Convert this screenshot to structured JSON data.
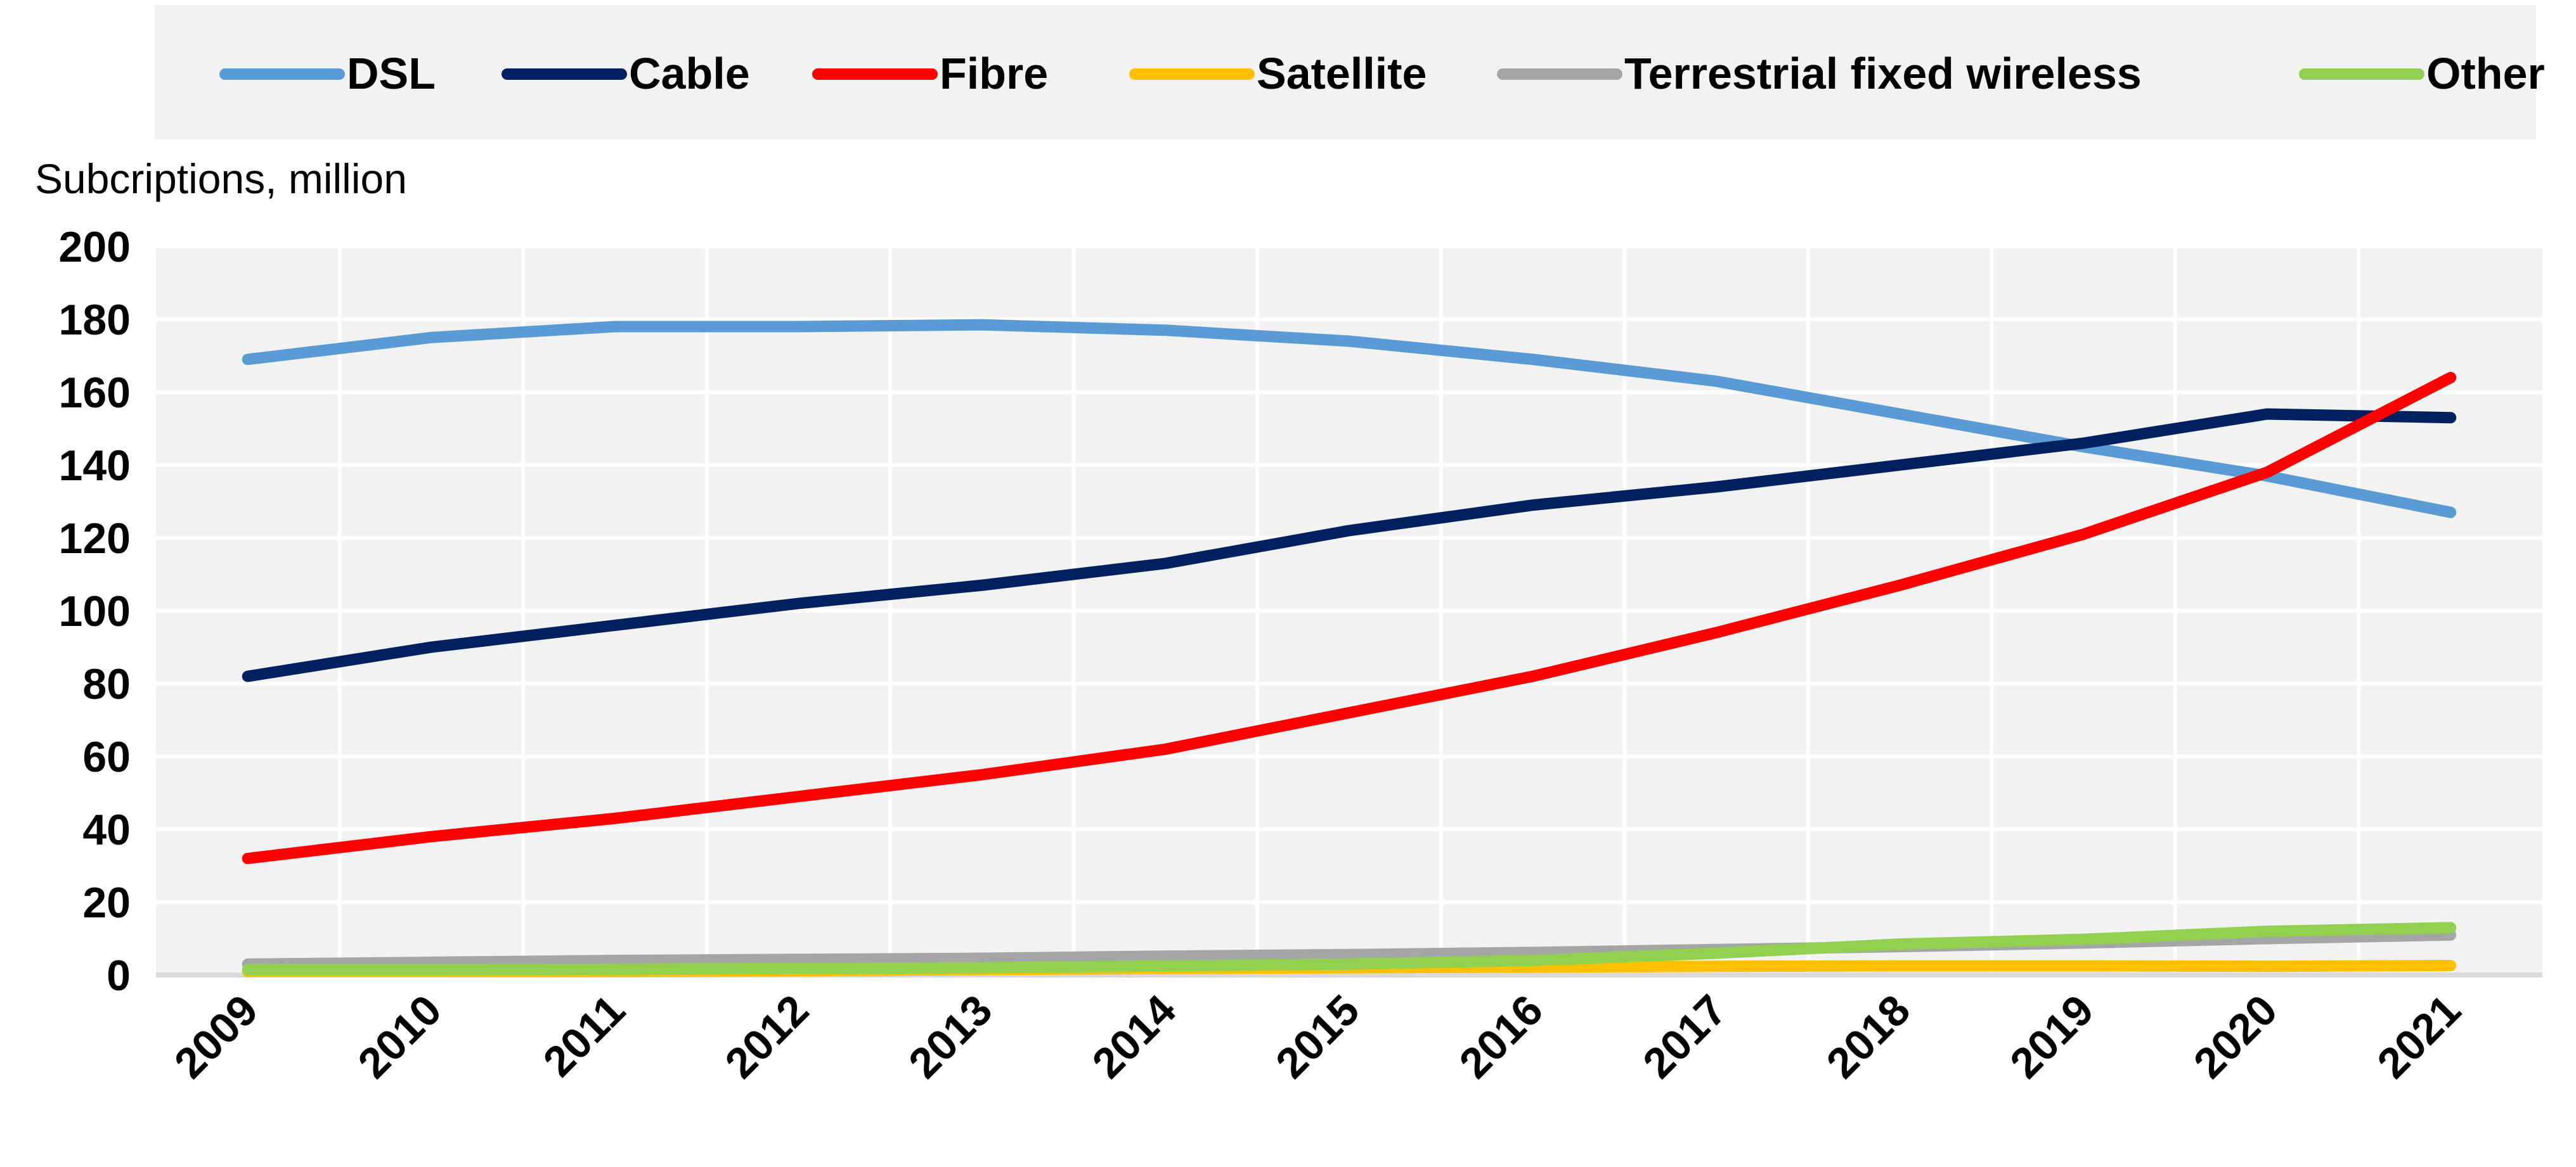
{
  "chart_data": {
    "type": "line",
    "title": "",
    "ylabel": "Subcriptions, million",
    "xlabel": "",
    "ylim": [
      0,
      200
    ],
    "yticks": [
      0,
      20,
      40,
      60,
      80,
      100,
      120,
      140,
      160,
      180,
      200
    ],
    "grid": true,
    "legend_position": "top",
    "categories": [
      "2009",
      "2010",
      "2011",
      "2012",
      "2013",
      "2014",
      "2015",
      "2016",
      "2017",
      "2018",
      "2019",
      "2020",
      "2021"
    ],
    "series": [
      {
        "name": "DSL",
        "color": "#5b9bd5",
        "values": [
          169,
          175,
          178,
          178,
          178.5,
          177,
          174,
          169,
          163,
          154,
          145,
          137,
          127
        ]
      },
      {
        "name": "Cable",
        "color": "#002060",
        "values": [
          82,
          90,
          96,
          102,
          107,
          113,
          122,
          129,
          134,
          140,
          146,
          154,
          153
        ]
      },
      {
        "name": "Fibre",
        "color": "#ff0000",
        "values": [
          32,
          38,
          43,
          49,
          55,
          62,
          72,
          82,
          94,
          107,
          121,
          138,
          164
        ]
      },
      {
        "name": "Satellite",
        "color": "#ffc000",
        "values": [
          1,
          1,
          1,
          1.2,
          1.5,
          1.8,
          2,
          2.2,
          2.4,
          2.5,
          2.5,
          2.4,
          2.6
        ]
      },
      {
        "name": "Terrestrial fixed wireless",
        "color": "#a5a5a5",
        "values": [
          3,
          3.5,
          4,
          4.3,
          4.6,
          5.2,
          5.6,
          6.2,
          7,
          7.8,
          8.8,
          10,
          11
        ]
      },
      {
        "name": "Other",
        "color": "#92d050",
        "values": [
          1.5,
          1.5,
          1.6,
          1.8,
          2,
          2.5,
          3,
          4,
          6,
          8.5,
          9.8,
          12,
          13
        ]
      }
    ]
  }
}
